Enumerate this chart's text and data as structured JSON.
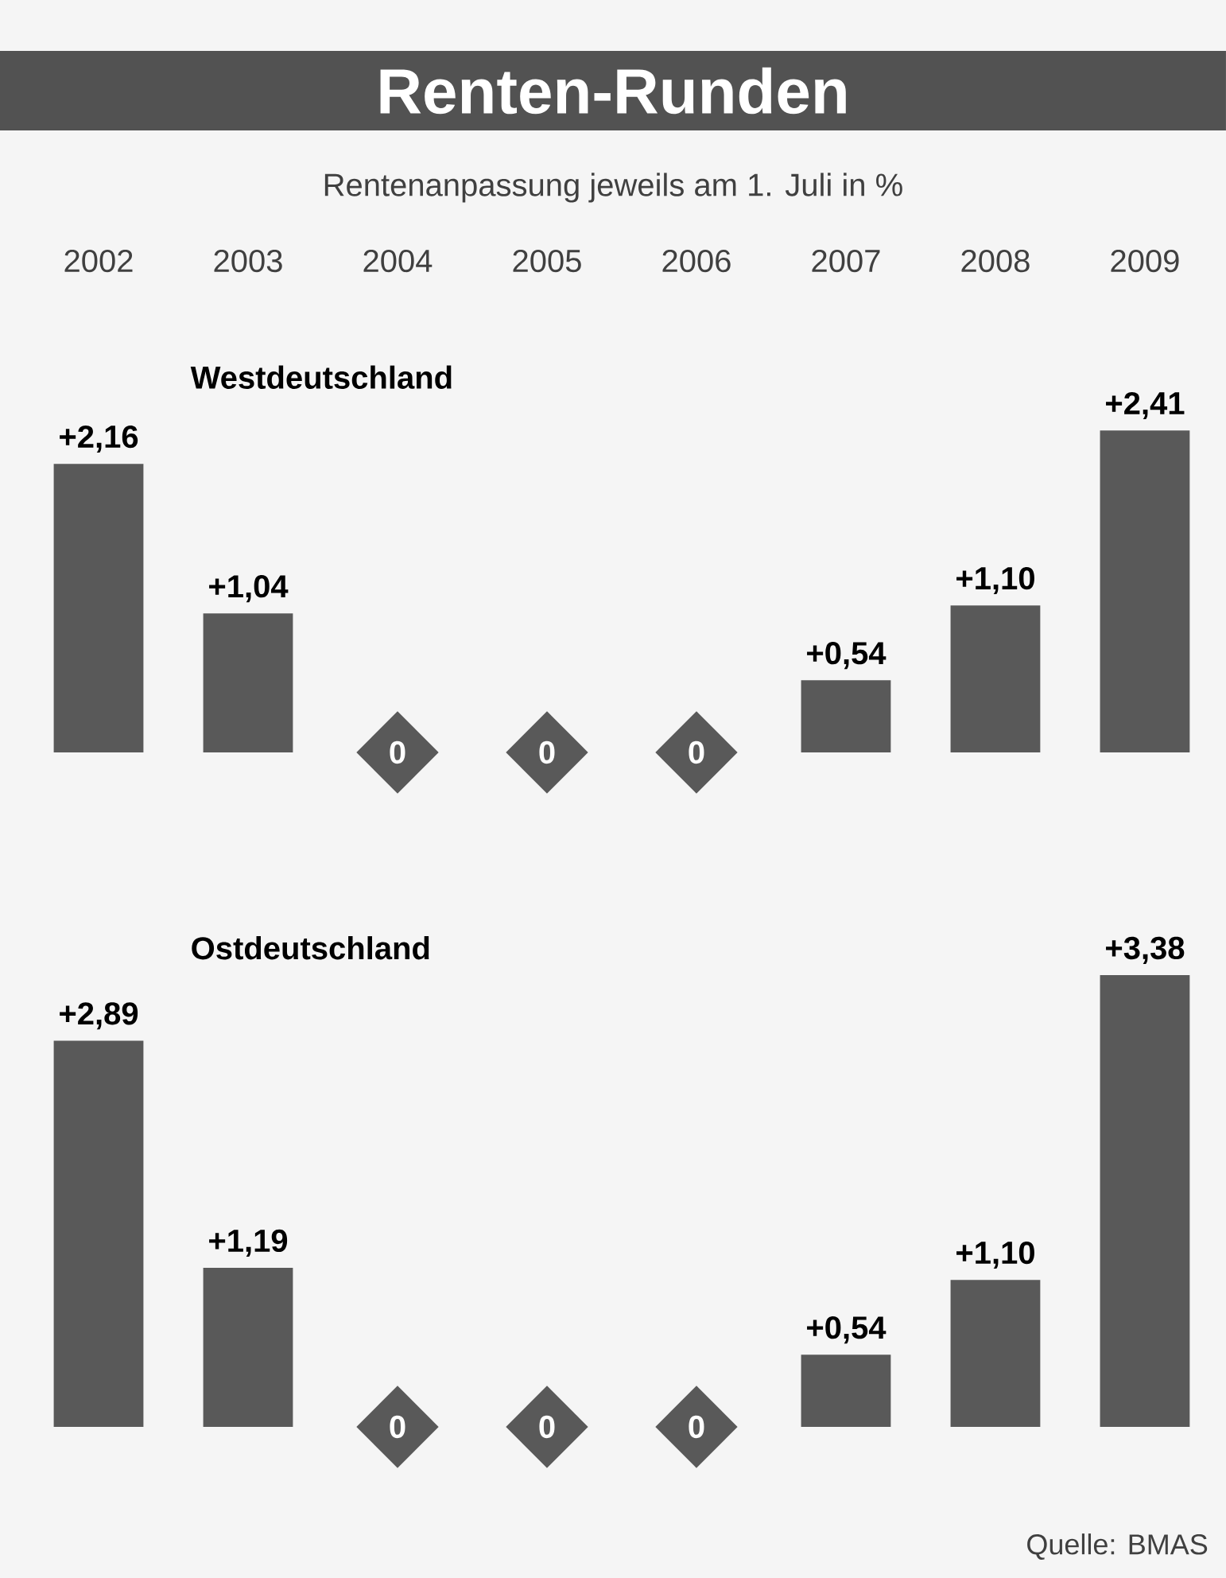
{
  "chart_data": [
    {
      "type": "bar",
      "title": "Renten-Runden",
      "subtitle": "Rentenanpassung jeweils am 1. Juli in %",
      "categories": [
        "2002",
        "2003",
        "2004",
        "2005",
        "2006",
        "2007",
        "2008",
        "2009"
      ],
      "values": [
        2.16,
        1.04,
        0,
        0,
        0,
        0.54,
        1.1,
        2.41
      ],
      "value_labels": [
        "+2,16",
        "+1,04",
        "0",
        "0",
        "0",
        "+0,54",
        "+1,10",
        "+2,41"
      ],
      "color": "#595959",
      "annotations": [
        "Westdeutschland"
      ],
      "tick_labels": "x"
    },
    {
      "type": "bar",
      "categories": [
        "2002",
        "2003",
        "2004",
        "2005",
        "2006",
        "2007",
        "2008",
        "2009"
      ],
      "values": [
        2.89,
        1.19,
        0,
        0,
        0,
        0.54,
        1.1,
        3.38
      ],
      "value_labels": [
        "+2,89",
        "+1,19",
        "0",
        "0",
        "0",
        "+0,54",
        "+1,10",
        "+3,38"
      ],
      "color": "#595959",
      "annotations": [
        "Ostdeutschland",
        "Quelle: BMAS"
      ],
      "tick_labels": false
    }
  ]
}
